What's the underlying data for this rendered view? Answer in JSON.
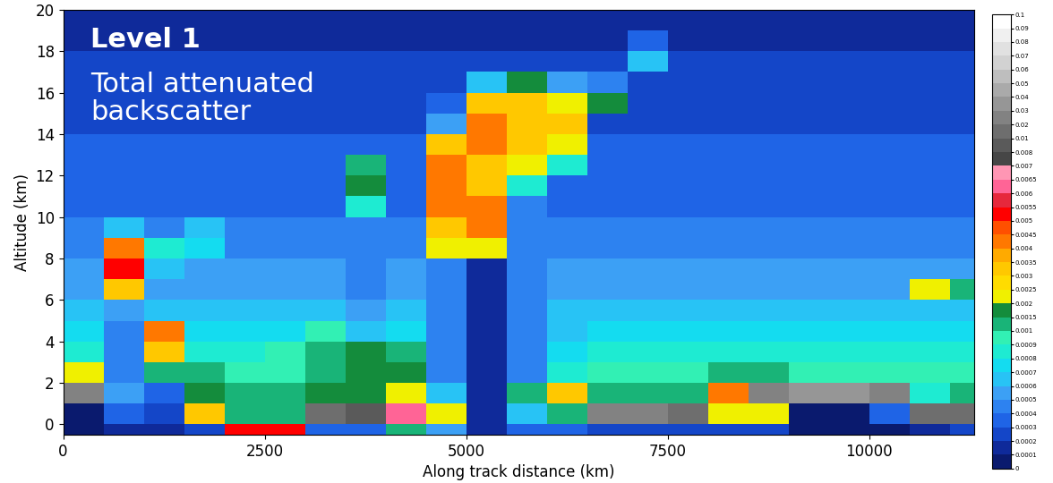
{
  "chart_data": {
    "type": "heatmap",
    "x_label": "Along track distance (km)",
    "y_label": "Altitude (km)",
    "annotations": [
      "Level 1",
      "Total attenuated\nbackscatter"
    ],
    "xlim": [
      0,
      11300
    ],
    "xticks": [
      0,
      2500,
      5000,
      7500,
      10000
    ],
    "ylim": [
      -0.5,
      20
    ],
    "yticks": [
      0,
      2,
      4,
      6,
      8,
      10,
      12,
      14,
      16,
      18,
      20
    ],
    "x_edges": [
      0,
      500,
      1000,
      1500,
      2000,
      2500,
      3000,
      3500,
      4000,
      4500,
      5000,
      5500,
      6000,
      6500,
      7000,
      7500,
      8000,
      8500,
      9000,
      9500,
      10000,
      10500,
      11000,
      11500
    ],
    "y_edges": [
      -0.5,
      0,
      1,
      2,
      3,
      4,
      5,
      6,
      7,
      8,
      9,
      10,
      11,
      12,
      13,
      14,
      15,
      16,
      17,
      18,
      19,
      20
    ],
    "cells": [
      [
        5e-05,
        5e-05,
        0.02,
        0.002,
        0.0008,
        0.0007,
        0.0006,
        0.0005,
        0.0005,
        0.0004,
        0.0004,
        0.0003,
        0.0003,
        0.0003,
        0.0003,
        0.0002,
        0.0002,
        0.0002,
        0.0002,
        0.0001,
        0.0001
      ],
      [
        0.0001,
        0.0003,
        0.0005,
        0.0004,
        0.0004,
        0.0004,
        0.0005,
        0.003,
        0.005,
        0.004,
        0.0006,
        0.0003,
        0.0003,
        0.0003,
        0.0003,
        0.0002,
        0.0002,
        0.0002,
        0.0002,
        0.0001,
        0.0001
      ],
      [
        0.0001,
        0.0002,
        0.0003,
        0.001,
        0.003,
        0.004,
        0.0006,
        0.0005,
        0.0006,
        0.0008,
        0.0004,
        0.0003,
        0.0003,
        0.0003,
        0.0003,
        0.0002,
        0.0002,
        0.0002,
        0.0002,
        0.0001,
        0.0001
      ],
      [
        0.0002,
        0.003,
        0.0015,
        0.0012,
        0.0008,
        0.0007,
        0.0006,
        0.0005,
        0.0005,
        0.0007,
        0.0006,
        0.0003,
        0.0003,
        0.0003,
        0.0003,
        0.0002,
        0.0002,
        0.0002,
        0.0002,
        0.0001,
        0.0001
      ],
      [
        0.005,
        0.0012,
        0.001,
        0.0009,
        0.0008,
        0.0007,
        0.0006,
        0.0005,
        0.0005,
        0.0004,
        0.0004,
        0.0003,
        0.0003,
        0.0003,
        0.0003,
        0.0002,
        0.0002,
        0.0002,
        0.0002,
        0.0001,
        0.0001
      ],
      [
        0.005,
        0.0012,
        0.001,
        0.0009,
        0.0009,
        0.0007,
        0.0006,
        0.0005,
        0.0005,
        0.0004,
        0.0004,
        0.0003,
        0.0003,
        0.0003,
        0.0003,
        0.0002,
        0.0002,
        0.0002,
        0.0002,
        0.0001,
        0.0001
      ],
      [
        0.0003,
        0.01,
        0.0015,
        0.0012,
        0.0012,
        0.0009,
        0.0006,
        0.0005,
        0.0005,
        0.0004,
        0.0004,
        0.0003,
        0.0003,
        0.0003,
        0.0003,
        0.0002,
        0.0002,
        0.0002,
        0.0002,
        0.0001,
        0.0001
      ],
      [
        0.0003,
        0.008,
        0.0015,
        0.0015,
        0.0015,
        0.0006,
        0.0005,
        0.0004,
        0.0004,
        0.0004,
        0.0004,
        0.0008,
        0.0015,
        0.0012,
        0.0003,
        0.0002,
        0.0002,
        0.0002,
        0.0002,
        0.0001,
        0.0001
      ],
      [
        0.001,
        0.006,
        0.002,
        0.0015,
        0.001,
        0.0007,
        0.0006,
        0.0005,
        0.0005,
        0.0004,
        0.0004,
        0.0003,
        0.0003,
        0.0003,
        0.0003,
        0.0002,
        0.0002,
        0.0002,
        0.0002,
        0.0001,
        0.0001
      ],
      [
        0.0005,
        0.002,
        0.0006,
        0.0004,
        0.0004,
        0.0004,
        0.0004,
        0.0004,
        0.0004,
        0.002,
        0.003,
        0.004,
        0.004,
        0.004,
        0.003,
        0.0005,
        0.0003,
        0.0002,
        0.0002,
        0.0001,
        0.0001
      ],
      [
        0.0001,
        0.0001,
        0.0001,
        0.0001,
        0.0001,
        0.0001,
        0.0001,
        0.0001,
        0.0001,
        0.002,
        0.004,
        0.004,
        0.003,
        0.003,
        0.004,
        0.004,
        0.003,
        0.0006,
        0.0002,
        0.0001,
        0.0001
      ],
      [
        0.0003,
        0.0006,
        0.001,
        0.0004,
        0.0004,
        0.0004,
        0.0004,
        0.0004,
        0.0004,
        0.0004,
        0.0004,
        0.0004,
        0.0008,
        0.002,
        0.003,
        0.003,
        0.003,
        0.0015,
        0.0002,
        0.0001,
        0.0001
      ],
      [
        0.0003,
        0.001,
        0.003,
        0.0008,
        0.0007,
        0.0006,
        0.0006,
        0.0005,
        0.0005,
        0.0004,
        0.0004,
        0.0003,
        0.0003,
        0.0008,
        0.002,
        0.003,
        0.002,
        0.0005,
        0.0002,
        0.0001,
        0.0001
      ],
      [
        0.0002,
        0.02,
        0.001,
        0.0009,
        0.0008,
        0.0007,
        0.0006,
        0.0005,
        0.0005,
        0.0004,
        0.0004,
        0.0003,
        0.0003,
        0.0003,
        0.0003,
        0.0002,
        0.0015,
        0.0004,
        0.0002,
        0.0001,
        0.0001
      ],
      [
        0.0002,
        0.02,
        0.0012,
        0.0009,
        0.0008,
        0.0007,
        0.0006,
        0.0005,
        0.0005,
        0.0004,
        0.0004,
        0.0003,
        0.0003,
        0.0003,
        0.0003,
        0.0002,
        0.0002,
        0.0002,
        0.0006,
        0.0003,
        0.0001
      ],
      [
        0.0002,
        0.01,
        0.0012,
        0.0009,
        0.0008,
        0.0007,
        0.0006,
        0.0005,
        0.0005,
        0.0004,
        0.0004,
        0.0003,
        0.0003,
        0.0003,
        0.0003,
        0.0002,
        0.0002,
        0.0002,
        0.0002,
        0.0001,
        0.0001
      ],
      [
        0.0002,
        0.002,
        0.004,
        0.001,
        0.0008,
        0.0007,
        0.0006,
        0.0005,
        0.0005,
        0.0004,
        0.0004,
        0.0003,
        0.0003,
        0.0003,
        0.0003,
        0.0002,
        0.0002,
        0.0002,
        0.0002,
        0.0001,
        0.0001
      ],
      [
        0.0002,
        0.002,
        0.02,
        0.001,
        0.0008,
        0.0007,
        0.0006,
        0.0005,
        0.0005,
        0.0004,
        0.0004,
        0.0003,
        0.0003,
        0.0003,
        0.0003,
        0.0002,
        0.0002,
        0.0002,
        0.0002,
        0.0001,
        0.0001
      ],
      [
        5e-05,
        5e-05,
        0.03,
        0.0009,
        0.0008,
        0.0007,
        0.0006,
        0.0005,
        0.0005,
        0.0004,
        0.0004,
        0.0003,
        0.0003,
        0.0003,
        0.0003,
        0.0002,
        0.0002,
        0.0002,
        0.0002,
        0.0001,
        0.0001
      ],
      [
        5e-05,
        5e-05,
        0.03,
        0.0009,
        0.0008,
        0.0007,
        0.0006,
        0.0005,
        0.0005,
        0.0004,
        0.0004,
        0.0003,
        0.0003,
        0.0003,
        0.0003,
        0.0002,
        0.0002,
        0.0002,
        0.0002,
        0.0001,
        0.0001
      ],
      [
        5e-05,
        0.0003,
        0.02,
        0.0009,
        0.0008,
        0.0007,
        0.0006,
        0.0005,
        0.0005,
        0.0004,
        0.0004,
        0.0003,
        0.0003,
        0.0003,
        0.0003,
        0.0002,
        0.0002,
        0.0002,
        0.0002,
        0.0001,
        0.0001
      ],
      [
        0.0001,
        0.01,
        0.0008,
        0.0009,
        0.0008,
        0.0007,
        0.0006,
        0.002,
        0.0005,
        0.0004,
        0.0004,
        0.0003,
        0.0003,
        0.0003,
        0.0003,
        0.0002,
        0.0002,
        0.0002,
        0.0002,
        0.0001,
        0.0001
      ],
      [
        0.0002,
        0.01,
        0.001,
        0.0009,
        0.0008,
        0.0007,
        0.0006,
        0.001,
        0.0005,
        0.0004,
        0.0004,
        0.0003,
        0.0003,
        0.0003,
        0.0003,
        0.0002,
        0.0002,
        0.0002,
        0.0002,
        0.0001,
        0.0001
      ]
    ],
    "colorbar_range": [
      0,
      0.1
    ],
    "colorbar_ticks": [
      0,
      0.0001,
      0.0002,
      0.0003,
      0.0004,
      0.0005,
      0.0006,
      0.0007,
      0.0008,
      0.0009,
      0.001,
      0.0015,
      0.002,
      0.0025,
      0.003,
      0.0035,
      0.004,
      0.0045,
      0.005,
      0.0055,
      0.006,
      0.0065,
      0.007,
      0.008,
      0.01,
      0.02,
      0.03,
      0.04,
      0.05,
      0.06,
      0.07,
      0.08,
      0.09,
      0.1
    ]
  }
}
